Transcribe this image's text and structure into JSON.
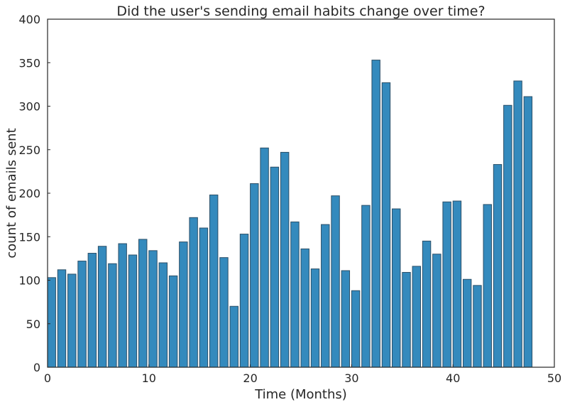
{
  "chart_data": {
    "type": "bar",
    "title": "Did the user's sending email habits change over time?",
    "xlabel": "Time (Months)",
    "ylabel": "count of emails sent",
    "xlim": [
      0,
      50
    ],
    "ylim": [
      0,
      400
    ],
    "xticks": [
      0,
      10,
      20,
      30,
      40,
      50
    ],
    "yticks": [
      0,
      50,
      100,
      150,
      200,
      250,
      300,
      350,
      400
    ],
    "bar_width": 0.8,
    "grid": false,
    "legend": "none",
    "colors": {
      "bar": "#348abd",
      "edge": "#2b4f68"
    },
    "x": [
      0,
      1,
      2,
      3,
      4,
      5,
      6,
      7,
      8,
      9,
      10,
      11,
      12,
      13,
      14,
      15,
      16,
      17,
      18,
      19,
      20,
      21,
      22,
      23,
      24,
      25,
      26,
      27,
      28,
      29,
      30,
      31,
      32,
      33,
      34,
      35,
      36,
      37,
      38,
      39,
      40,
      41,
      42,
      43,
      44,
      45,
      46,
      47
    ],
    "values": [
      103,
      112,
      107,
      122,
      131,
      139,
      119,
      142,
      129,
      147,
      134,
      120,
      105,
      144,
      172,
      160,
      198,
      126,
      70,
      153,
      211,
      252,
      230,
      247,
      167,
      136,
      113,
      164,
      197,
      111,
      88,
      186,
      353,
      327,
      182,
      109,
      116,
      145,
      130,
      190,
      191,
      101,
      94,
      187,
      233,
      301,
      329,
      311
    ]
  }
}
